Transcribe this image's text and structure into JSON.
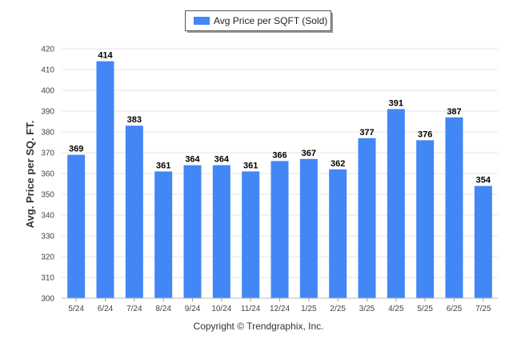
{
  "chart_data": {
    "type": "bar",
    "legend": {
      "label": "Avg Price per SQFT (Sold)",
      "position": "top-center"
    },
    "ylabel": "Avg. Price per SQ. FT.",
    "xlabel": "",
    "ylim": [
      300,
      420
    ],
    "yticks": [
      300,
      310,
      320,
      330,
      340,
      350,
      360,
      370,
      380,
      390,
      400,
      410,
      420
    ],
    "grid": true,
    "categories": [
      "5/24",
      "6/24",
      "7/24",
      "8/24",
      "9/24",
      "10/24",
      "11/24",
      "12/24",
      "1/25",
      "2/25",
      "3/25",
      "4/25",
      "5/25",
      "6/25",
      "7/25"
    ],
    "series": [
      {
        "name": "Avg Price per SQFT (Sold)",
        "values": [
          369,
          414,
          383,
          361,
          364,
          364,
          361,
          366,
          367,
          362,
          377,
          391,
          376,
          387,
          354
        ]
      }
    ],
    "bar_color": "#4287f5",
    "grid_color": "#e6e6e6"
  },
  "footer": {
    "copyright": "Copyright © Trendgraphix, Inc."
  }
}
